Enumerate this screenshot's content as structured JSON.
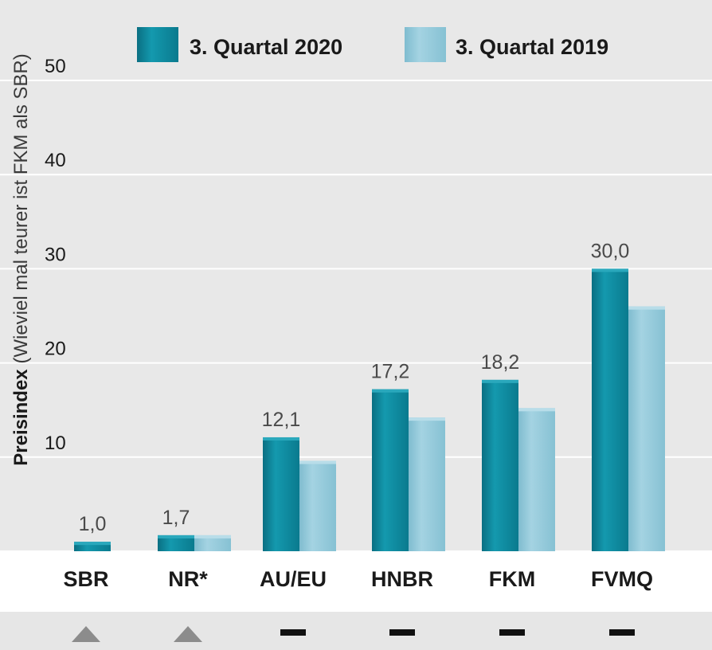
{
  "chart_data": {
    "type": "bar",
    "ylabel_bold": "Preisindex",
    "ylabel_rest": " (Wieviel mal teurer ist FKM als SBR)",
    "ylim": [
      0,
      50
    ],
    "yticks": [
      10,
      20,
      30,
      40,
      50
    ],
    "categories": [
      "SBR",
      "NR*",
      "AU/EU",
      "HNBR",
      "FKM",
      "FVMQ"
    ],
    "series": [
      {
        "name": "3. Quartal 2020",
        "color": "#0e8aa0",
        "values": [
          1.0,
          1.7,
          12.1,
          17.2,
          18.2,
          30.0
        ]
      },
      {
        "name": "3. Quartal 2019",
        "color": "#8fc6d8",
        "values": [
          null,
          1.7,
          9.6,
          14.2,
          15.2,
          26.0
        ]
      }
    ],
    "data_labels": [
      "1,0",
      "1,7",
      "12,1",
      "17,2",
      "18,2",
      "30,0"
    ],
    "trend_indicators": [
      "up",
      "up",
      "flat",
      "flat",
      "flat",
      "flat"
    ]
  }
}
